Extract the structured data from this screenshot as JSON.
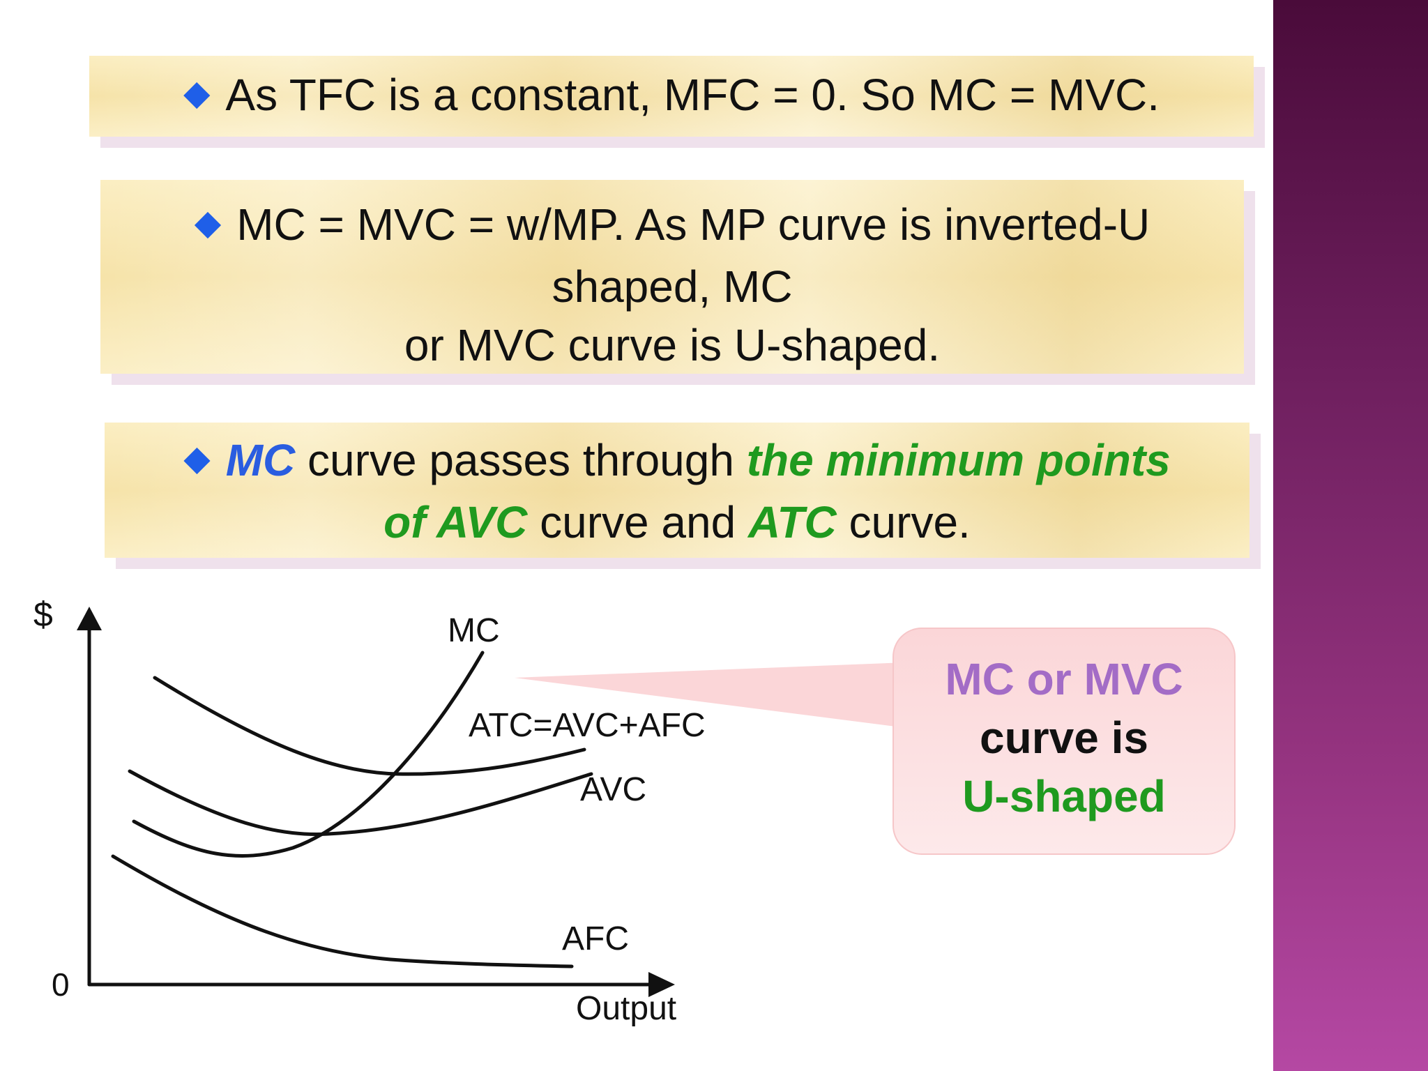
{
  "notes": [
    {
      "bullet": "◆",
      "text": "As TFC is a constant, MFC = 0.  So MC = MVC."
    },
    {
      "bullet": "◆",
      "line1": "MC = MVC = w/MP.  As MP curve is inverted-U",
      "line2": "shaped,  MC",
      "line3": "or MVC curve is U-shaped."
    },
    {
      "bullet": "◆",
      "mc": "MC",
      "t1": " curve passes through ",
      "min_points": "the minimum points",
      "of_avc": "of AVC",
      "t2": " curve and ",
      "atc": "ATC",
      "t3": " curve."
    }
  ],
  "diagram": {
    "y_axis_label": "$",
    "origin_label": "0",
    "x_axis_label": "Output",
    "curve_labels": {
      "mc": "MC",
      "atc": "ATC=AVC+AFC",
      "avc": "AVC",
      "afc": "AFC"
    }
  },
  "callout": {
    "line1": "MC or MVC",
    "line2": "curve is",
    "line3": "U-shaped"
  },
  "colors": {
    "sidebar_top": "#4a0b3a",
    "sidebar_bottom": "#b548a3",
    "bullet": "#1f5fe8",
    "emphasis_blue": "#2a5de0",
    "emphasis_green": "#1f9a1f",
    "callout_purple": "#a36cc6",
    "note_bg": "#f6e3a9",
    "callout_bg": "#fbd6d8"
  }
}
